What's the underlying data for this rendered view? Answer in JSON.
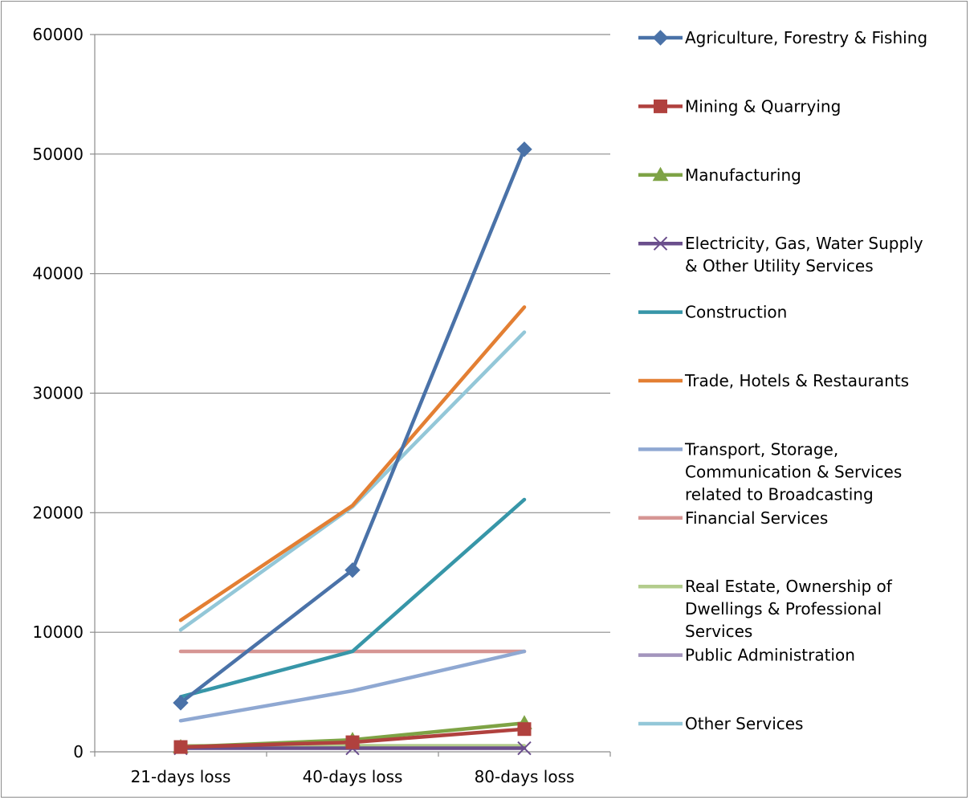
{
  "chart_data": {
    "type": "line",
    "title": "",
    "xlabel": "",
    "ylabel": "",
    "categories": [
      "21-days loss",
      "40-days loss",
      "80-days loss"
    ],
    "ylim": [
      0,
      60000
    ],
    "yticks": [
      0,
      10000,
      20000,
      30000,
      40000,
      50000,
      60000
    ],
    "grid": true,
    "legend_position": "right",
    "series": [
      {
        "name": "Agriculture, Forestry & Fishing",
        "label_lines": [
          "Agriculture, Forestry & Fishing"
        ],
        "values": [
          4100,
          15200,
          50400
        ],
        "color": "#4a72a8",
        "marker": "diamond"
      },
      {
        "name": "Mining & Quarrying",
        "label_lines": [
          "Mining & Quarrying"
        ],
        "values": [
          400,
          800,
          1900
        ],
        "color": "#b0413e",
        "marker": "square"
      },
      {
        "name": "Manufacturing",
        "label_lines": [
          "Manufacturing"
        ],
        "values": [
          400,
          1000,
          2400
        ],
        "color": "#7ea345",
        "marker": "triangle"
      },
      {
        "name": "Electricity, Gas, Water Supply & Other Utility Services",
        "label_lines": [
          "Electricity, Gas, Water Supply",
          "& Other Utility Services"
        ],
        "values": [
          300,
          300,
          300
        ],
        "color": "#6a4e8c",
        "marker": "x"
      },
      {
        "name": "Construction",
        "label_lines": [
          "Construction"
        ],
        "values": [
          4600,
          8400,
          21100
        ],
        "color": "#3796a8",
        "marker": "none"
      },
      {
        "name": "Trade, Hotels & Restaurants",
        "label_lines": [
          "Trade, Hotels & Restaurants"
        ],
        "values": [
          11000,
          20600,
          37200
        ],
        "color": "#e37f33",
        "marker": "none"
      },
      {
        "name": "Transport, Storage, Communication & Services related to Broadcasting",
        "label_lines": [
          "Transport, Storage,",
          "Communication & Services",
          "related to Broadcasting"
        ],
        "values": [
          2600,
          5100,
          8400
        ],
        "color": "#8fa8d2",
        "marker": "none"
      },
      {
        "name": "Financial Services",
        "label_lines": [
          "Financial Services"
        ],
        "values": [
          8400,
          8400,
          8400
        ],
        "color": "#d69593",
        "marker": "none"
      },
      {
        "name": "Real Estate, Ownership of Dwellings & Professional Services",
        "label_lines": [
          "Real Estate, Ownership of",
          "Dwellings & Professional",
          "Services"
        ],
        "values": [
          500,
          500,
          500
        ],
        "color": "#b3cc8c",
        "marker": "none"
      },
      {
        "name": "Public Administration",
        "label_lines": [
          "Public Administration"
        ],
        "values": [
          400,
          400,
          400
        ],
        "color": "#a395bd",
        "marker": "none"
      },
      {
        "name": "Other Services",
        "label_lines": [
          "Other Services"
        ],
        "values": [
          10200,
          20500,
          35100
        ],
        "color": "#93c7d8",
        "marker": "none"
      }
    ]
  }
}
